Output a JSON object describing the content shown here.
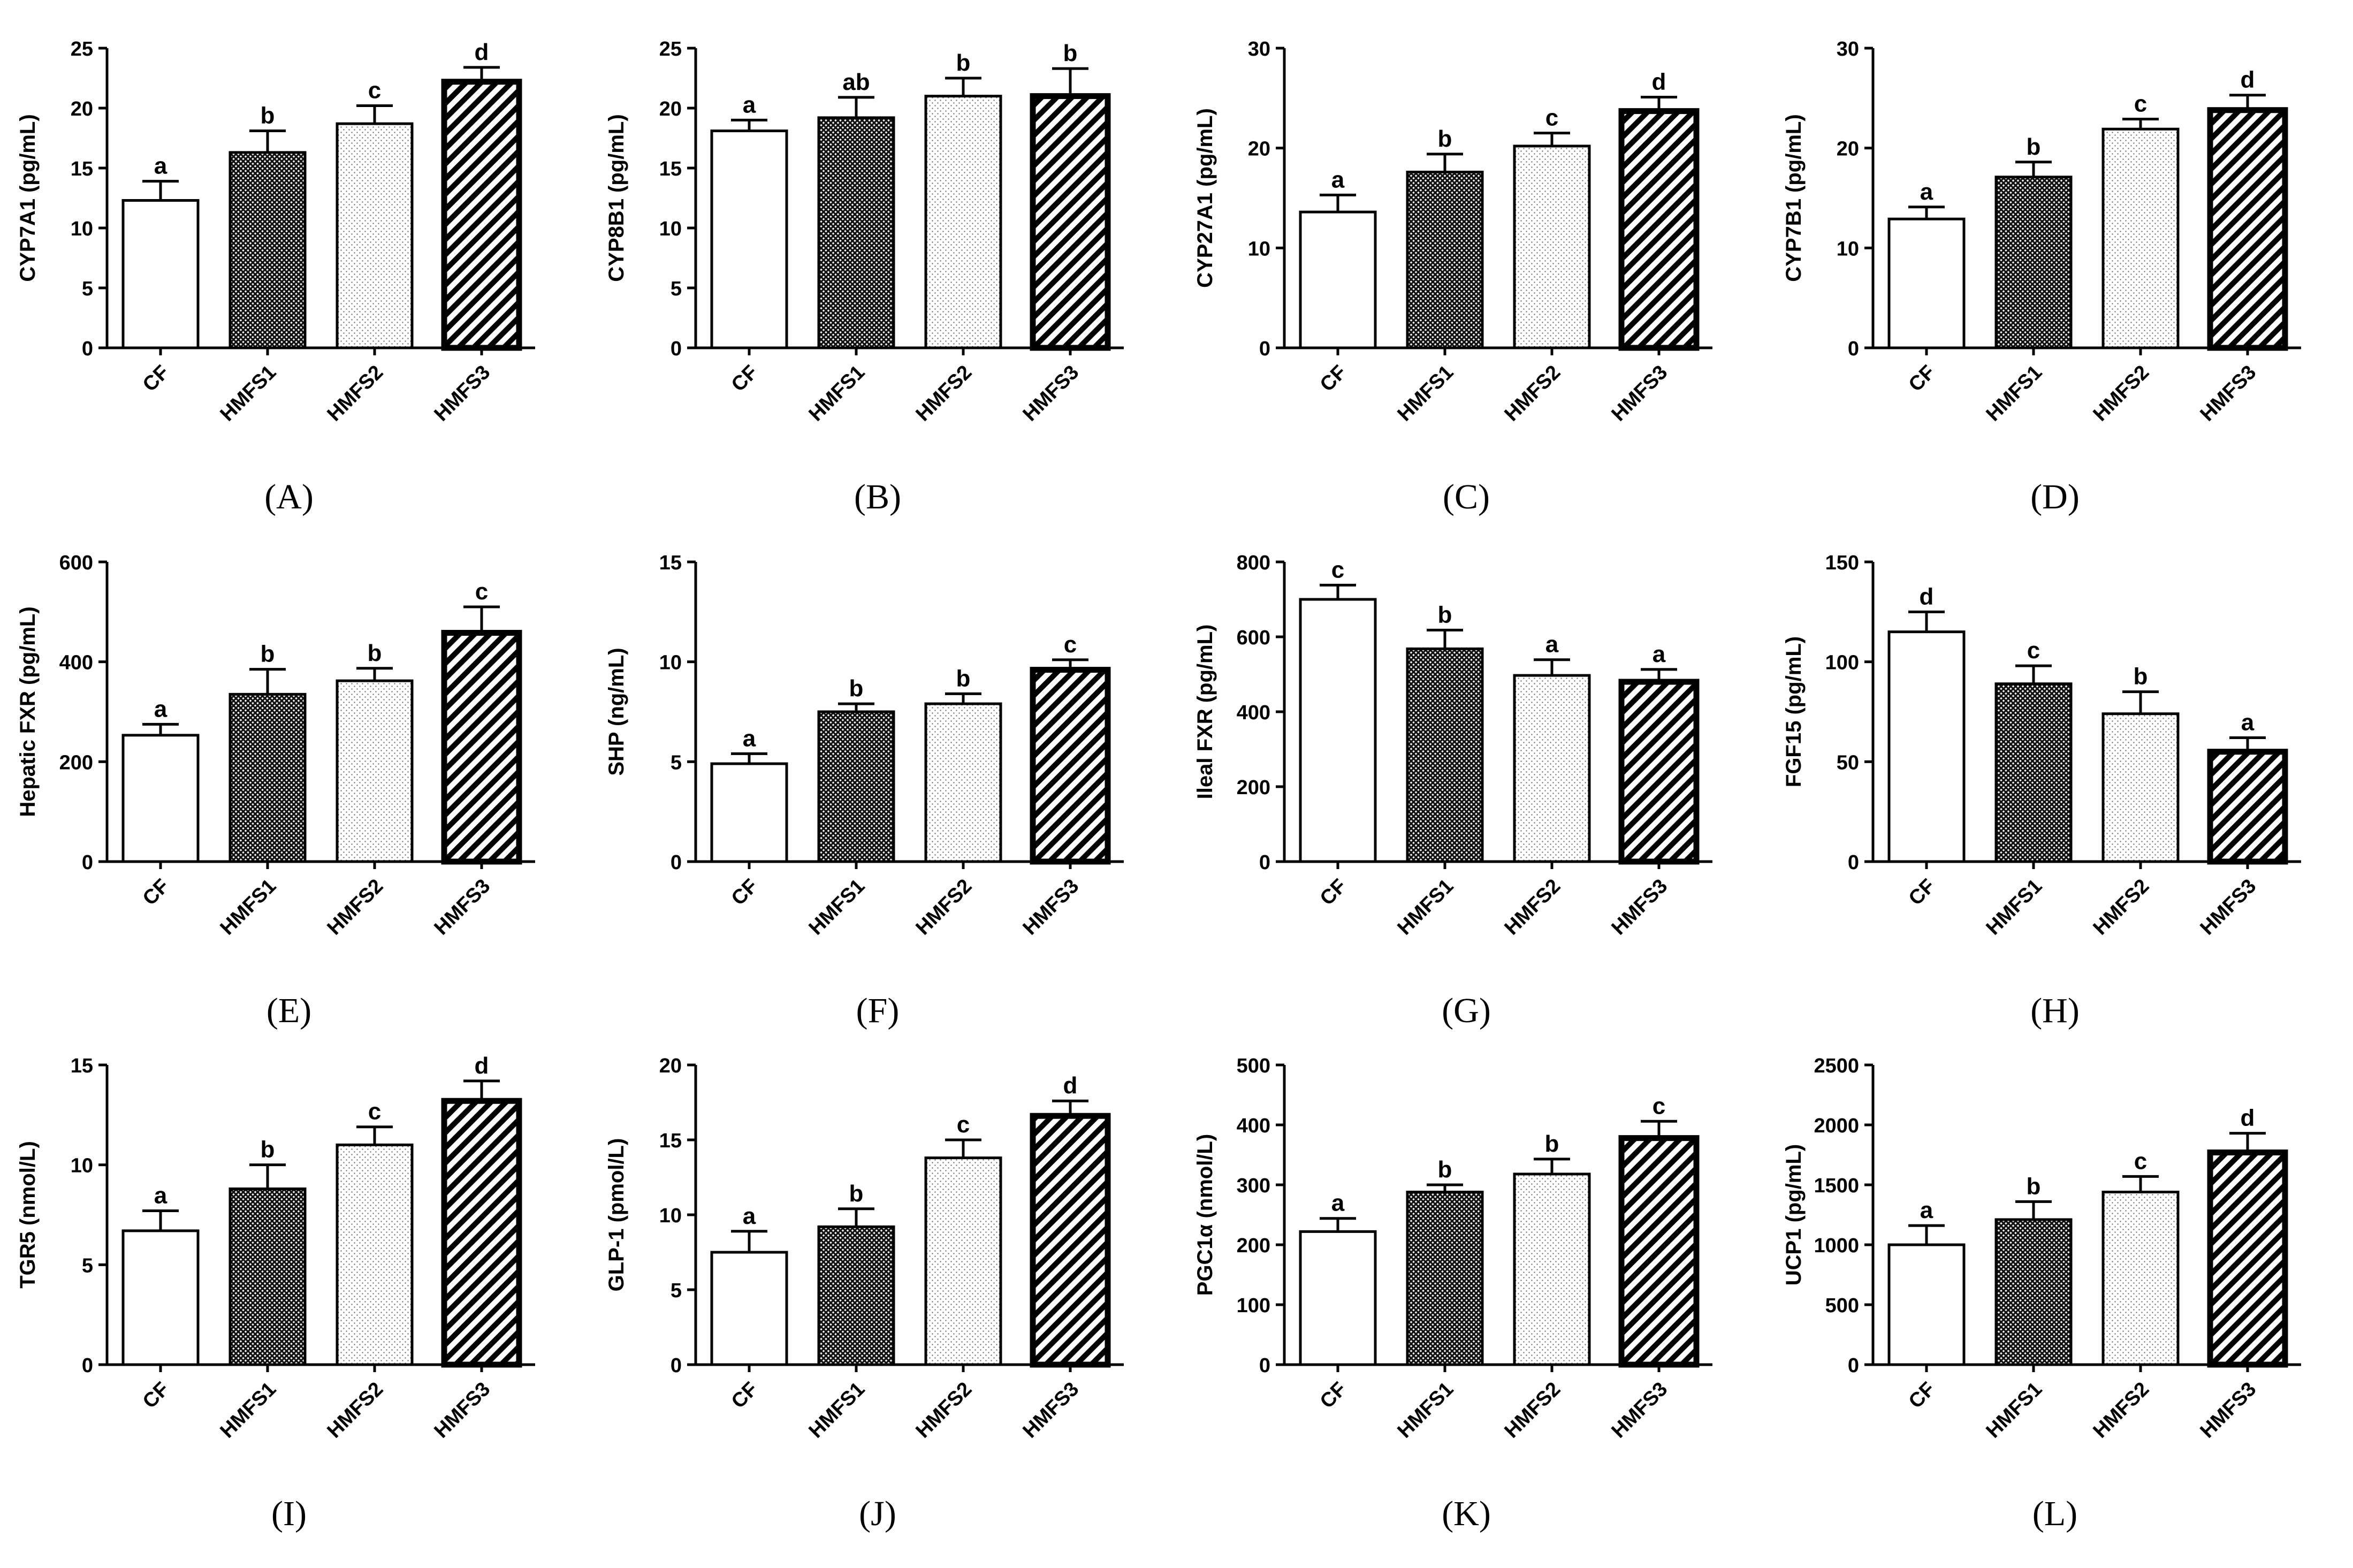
{
  "styles": {
    "bar_edge_color": "#000000",
    "background": "#ffffff",
    "bar_fills": [
      "white",
      "crosshatch-dense",
      "stipple-light",
      "diagonal-stripes"
    ]
  },
  "chart_data": [
    {
      "type": "bar",
      "panel": "(A)",
      "panel_letter": "A",
      "ylabel": "CYP7A1 (pg/mL)",
      "ylim": [
        0,
        25
      ],
      "yticks": [
        "0",
        "5",
        "10",
        "15",
        "20",
        "25"
      ],
      "categories": [
        "CF",
        "HMFS1",
        "HMFS2",
        "HMFS3"
      ],
      "values": [
        12.3,
        16.3,
        18.7,
        22.2
      ],
      "errors": [
        1.6,
        1.8,
        1.5,
        1.2
      ],
      "significance": [
        "a",
        "b",
        "c",
        "d"
      ]
    },
    {
      "type": "bar",
      "panel": "(B)",
      "panel_letter": "B",
      "ylabel": "CYP8B1 (pg/mL)",
      "ylim": [
        0,
        25
      ],
      "yticks": [
        "0",
        "5",
        "10",
        "15",
        "20",
        "25"
      ],
      "categories": [
        "CF",
        "HMFS1",
        "HMFS2",
        "HMFS3"
      ],
      "values": [
        18.1,
        19.2,
        21.0,
        21.0
      ],
      "errors": [
        0.9,
        1.7,
        1.5,
        2.3
      ],
      "significance": [
        "a",
        "ab",
        "b",
        "b"
      ]
    },
    {
      "type": "bar",
      "panel": "(C)",
      "panel_letter": "C",
      "ylabel": "CYP27A1 (pg/mL)",
      "ylim": [
        0,
        30
      ],
      "yticks": [
        "0",
        "10",
        "20",
        "30"
      ],
      "categories": [
        "CF",
        "HMFS1",
        "HMFS2",
        "HMFS3"
      ],
      "values": [
        13.6,
        17.6,
        20.2,
        23.7
      ],
      "errors": [
        1.7,
        1.8,
        1.3,
        1.4
      ],
      "significance": [
        "a",
        "b",
        "c",
        "d"
      ]
    },
    {
      "type": "bar",
      "panel": "(D)",
      "panel_letter": "D",
      "ylabel": "CYP7B1 (pg/mL)",
      "ylim": [
        0,
        30
      ],
      "yticks": [
        "0",
        "10",
        "20",
        "30"
      ],
      "categories": [
        "CF",
        "HMFS1",
        "HMFS2",
        "HMFS3"
      ],
      "values": [
        12.9,
        17.1,
        21.9,
        23.8
      ],
      "errors": [
        1.2,
        1.5,
        1.0,
        1.5
      ],
      "significance": [
        "a",
        "b",
        "c",
        "d"
      ]
    },
    {
      "type": "bar",
      "panel": "(E)",
      "panel_letter": "E",
      "ylabel": "Hepatic FXR (pg/mL)",
      "ylim": [
        0,
        600
      ],
      "yticks": [
        "0",
        "200",
        "400",
        "600"
      ],
      "categories": [
        "CF",
        "HMFS1",
        "HMFS2",
        "HMFS3"
      ],
      "values": [
        253,
        335,
        362,
        458
      ],
      "errors": [
        22,
        50,
        25,
        52
      ],
      "significance": [
        "a",
        "b",
        "b",
        "c"
      ]
    },
    {
      "type": "bar",
      "panel": "(F)",
      "panel_letter": "F",
      "ylabel": "SHP (ng/mL)",
      "ylim": [
        0,
        15
      ],
      "yticks": [
        "0",
        "5",
        "10",
        "15"
      ],
      "categories": [
        "CF",
        "HMFS1",
        "HMFS2",
        "HMFS3"
      ],
      "values": [
        4.9,
        7.5,
        7.9,
        9.6
      ],
      "errors": [
        0.5,
        0.4,
        0.5,
        0.5
      ],
      "significance": [
        "a",
        "b",
        "b",
        "c"
      ]
    },
    {
      "type": "bar",
      "panel": "(G)",
      "panel_letter": "G",
      "ylabel": "Ileal FXR (pg/mL)",
      "ylim": [
        0,
        800
      ],
      "yticks": [
        "0",
        "200",
        "400",
        "600",
        "800"
      ],
      "categories": [
        "CF",
        "HMFS1",
        "HMFS2",
        "HMFS3"
      ],
      "values": [
        700,
        568,
        497,
        480
      ],
      "errors": [
        38,
        50,
        42,
        33
      ],
      "significance": [
        "c",
        "b",
        "a",
        "a"
      ]
    },
    {
      "type": "bar",
      "panel": "(H)",
      "panel_letter": "H",
      "ylabel": "FGF15 (pg/mL)",
      "ylim": [
        0,
        150
      ],
      "yticks": [
        "0",
        "50",
        "100",
        "150"
      ],
      "categories": [
        "CF",
        "HMFS1",
        "HMFS2",
        "HMFS3"
      ],
      "values": [
        115,
        89,
        74,
        55
      ],
      "errors": [
        10,
        9,
        11,
        7
      ],
      "significance": [
        "d",
        "c",
        "b",
        "a"
      ]
    },
    {
      "type": "bar",
      "panel": "(I)",
      "panel_letter": "I",
      "ylabel": "TGR5 (nmol/L)",
      "ylim": [
        0,
        15
      ],
      "yticks": [
        "0",
        "5",
        "10",
        "15"
      ],
      "categories": [
        "CF",
        "HMFS1",
        "HMFS2",
        "HMFS3"
      ],
      "values": [
        6.7,
        8.8,
        11.0,
        13.2
      ],
      "errors": [
        1.0,
        1.2,
        0.9,
        1.0
      ],
      "significance": [
        "a",
        "b",
        "c",
        "d"
      ]
    },
    {
      "type": "bar",
      "panel": "(J)",
      "panel_letter": "J",
      "ylabel": "GLP-1 (pmol/L)",
      "ylim": [
        0,
        20
      ],
      "yticks": [
        "0",
        "5",
        "10",
        "15",
        "20"
      ],
      "categories": [
        "CF",
        "HMFS1",
        "HMFS2",
        "HMFS3"
      ],
      "values": [
        7.5,
        9.2,
        13.8,
        16.6
      ],
      "errors": [
        1.4,
        1.2,
        1.2,
        1.0
      ],
      "significance": [
        "a",
        "b",
        "c",
        "d"
      ]
    },
    {
      "type": "bar",
      "panel": "(K)",
      "panel_letter": "K",
      "ylabel": "PGC1α (nmol/L)",
      "ylim": [
        0,
        500
      ],
      "yticks": [
        "0",
        "100",
        "200",
        "300",
        "400",
        "500"
      ],
      "categories": [
        "CF",
        "HMFS1",
        "HMFS2",
        "HMFS3"
      ],
      "values": [
        222,
        288,
        318,
        378
      ],
      "errors": [
        22,
        12,
        25,
        28
      ],
      "significance": [
        "a",
        "b",
        "b",
        "c"
      ]
    },
    {
      "type": "bar",
      "panel": "(L)",
      "panel_letter": "L",
      "ylabel": "UCP1 (pg/mL)",
      "ylim": [
        0,
        2500
      ],
      "yticks": [
        "0",
        "500",
        "1000",
        "1500",
        "2000",
        "2500"
      ],
      "categories": [
        "CF",
        "HMFS1",
        "HMFS2",
        "HMFS3"
      ],
      "values": [
        1000,
        1210,
        1440,
        1770
      ],
      "errors": [
        160,
        150,
        130,
        160
      ],
      "significance": [
        "a",
        "b",
        "c",
        "d"
      ]
    }
  ]
}
